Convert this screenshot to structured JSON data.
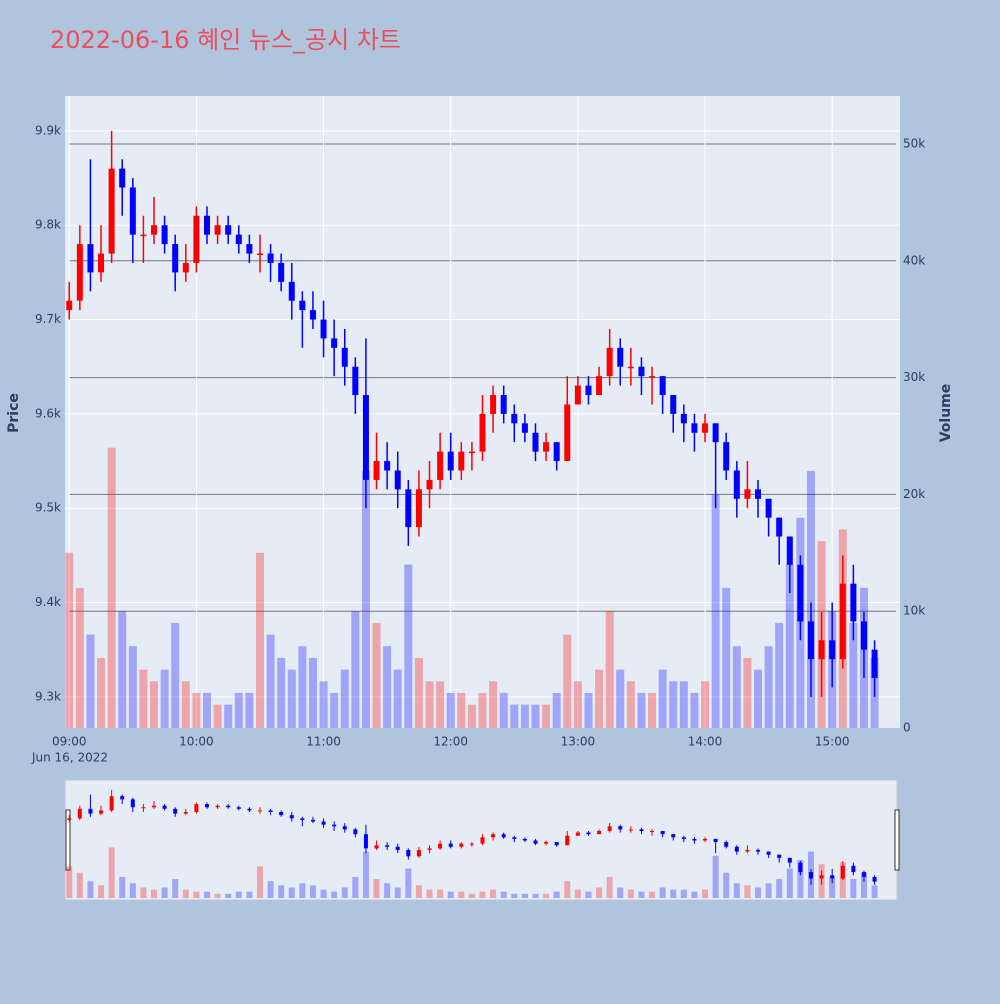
{
  "chart_data": {
    "type": "candlestick",
    "title": "2022-06-16 혜인 뉴스_공시 차트",
    "ylabel": "Price",
    "y2label": "Volume",
    "xdate": "Jun 16, 2022",
    "increasing_color": "#ff0000",
    "decreasing_color": "#0000ff",
    "x": [
      "09:00",
      "09:05",
      "09:10",
      "09:15",
      "09:20",
      "09:25",
      "09:30",
      "09:35",
      "09:40",
      "09:45",
      "09:50",
      "09:55",
      "10:00",
      "10:05",
      "10:10",
      "10:15",
      "10:20",
      "10:25",
      "10:30",
      "10:35",
      "10:40",
      "10:45",
      "10:50",
      "10:55",
      "11:00",
      "11:05",
      "11:10",
      "11:15",
      "11:20",
      "11:25",
      "11:30",
      "11:35",
      "11:40",
      "11:45",
      "11:50",
      "11:55",
      "12:00",
      "12:05",
      "12:10",
      "12:15",
      "12:20",
      "12:25",
      "12:30",
      "12:35",
      "12:40",
      "12:45",
      "12:50",
      "12:55",
      "13:00",
      "13:05",
      "13:10",
      "13:15",
      "13:20",
      "13:25",
      "13:30",
      "13:35",
      "13:40",
      "13:45",
      "13:50",
      "13:55",
      "14:00",
      "14:05",
      "14:10",
      "14:15",
      "14:20",
      "14:25",
      "14:30",
      "14:35",
      "14:40",
      "14:45",
      "14:50",
      "14:55",
      "15:00",
      "15:05",
      "15:10",
      "15:15",
      "15:20"
    ],
    "open": [
      9710,
      9720,
      9780,
      9750,
      9770,
      9860,
      9840,
      9790,
      9790,
      9800,
      9780,
      9750,
      9760,
      9810,
      9790,
      9800,
      9790,
      9780,
      9770,
      9770,
      9760,
      9740,
      9720,
      9710,
      9700,
      9680,
      9670,
      9650,
      9620,
      9530,
      9550,
      9540,
      9520,
      9480,
      9520,
      9530,
      9560,
      9540,
      9560,
      9560,
      9600,
      9620,
      9600,
      9590,
      9580,
      9560,
      9570,
      9550,
      9610,
      9630,
      9620,
      9640,
      9670,
      9650,
      9650,
      9640,
      9640,
      9620,
      9600,
      9590,
      9580,
      9590,
      9570,
      9540,
      9510,
      9520,
      9510,
      9490,
      9470,
      9440,
      9380,
      9340,
      9360,
      9340,
      9420,
      9380,
      9350
    ],
    "high": [
      9740,
      9800,
      9870,
      9800,
      9900,
      9870,
      9850,
      9810,
      9830,
      9810,
      9790,
      9780,
      9820,
      9820,
      9810,
      9810,
      9800,
      9790,
      9790,
      9780,
      9770,
      9760,
      9730,
      9730,
      9720,
      9700,
      9690,
      9660,
      9680,
      9580,
      9570,
      9560,
      9530,
      9540,
      9550,
      9580,
      9580,
      9570,
      9570,
      9620,
      9630,
      9630,
      9610,
      9600,
      9590,
      9580,
      9570,
      9640,
      9640,
      9640,
      9650,
      9690,
      9680,
      9670,
      9660,
      9650,
      9640,
      9620,
      9610,
      9600,
      9600,
      9590,
      9580,
      9550,
      9550,
      9530,
      9510,
      9490,
      9470,
      9450,
      9400,
      9390,
      9400,
      9450,
      9440,
      9390,
      9360
    ],
    "low": [
      9700,
      9710,
      9730,
      9740,
      9760,
      9810,
      9760,
      9760,
      9780,
      9770,
      9730,
      9740,
      9750,
      9780,
      9780,
      9780,
      9770,
      9760,
      9750,
      9740,
      9730,
      9700,
      9670,
      9690,
      9660,
      9640,
      9630,
      9600,
      9500,
      9520,
      9520,
      9500,
      9460,
      9470,
      9500,
      9520,
      9530,
      9530,
      9540,
      9550,
      9580,
      9590,
      9570,
      9570,
      9550,
      9550,
      9540,
      9550,
      9610,
      9610,
      9620,
      9630,
      9630,
      9630,
      9620,
      9610,
      9600,
      9580,
      9570,
      9560,
      9570,
      9500,
      9530,
      9490,
      9500,
      9490,
      9470,
      9440,
      9410,
      9360,
      9300,
      9300,
      9310,
      9330,
      9360,
      9320,
      9300
    ],
    "close": [
      9720,
      9780,
      9750,
      9770,
      9860,
      9840,
      9790,
      9790,
      9800,
      9780,
      9750,
      9760,
      9810,
      9790,
      9800,
      9790,
      9780,
      9770,
      9770,
      9760,
      9740,
      9720,
      9710,
      9700,
      9680,
      9670,
      9650,
      9620,
      9530,
      9550,
      9540,
      9520,
      9480,
      9520,
      9530,
      9560,
      9540,
      9560,
      9560,
      9600,
      9620,
      9600,
      9590,
      9580,
      9560,
      9570,
      9550,
      9610,
      9630,
      9620,
      9640,
      9670,
      9650,
      9650,
      9640,
      9640,
      9620,
      9600,
      9590,
      9580,
      9590,
      9570,
      9540,
      9510,
      9520,
      9510,
      9490,
      9470,
      9440,
      9380,
      9340,
      9360,
      9340,
      9420,
      9380,
      9350,
      9320
    ],
    "volume": [
      15000,
      12000,
      8000,
      6000,
      24000,
      10000,
      7000,
      5000,
      4000,
      5000,
      9000,
      4000,
      3000,
      3000,
      2000,
      2000,
      3000,
      3000,
      15000,
      8000,
      6000,
      5000,
      7000,
      6000,
      4000,
      3000,
      5000,
      10000,
      22000,
      9000,
      7000,
      5000,
      14000,
      6000,
      4000,
      4000,
      3000,
      3000,
      2000,
      3000,
      4000,
      3000,
      2000,
      2000,
      2000,
      2000,
      3000,
      8000,
      4000,
      3000,
      5000,
      10000,
      5000,
      4000,
      3000,
      3000,
      5000,
      4000,
      4000,
      3000,
      4000,
      20000,
      12000,
      7000,
      6000,
      5000,
      7000,
      9000,
      14000,
      18000,
      22000,
      16000,
      10000,
      17000,
      9000,
      12000,
      6000
    ],
    "xlim": [
      "08:58",
      "15:32"
    ],
    "xticks": [
      "09:00",
      "10:00",
      "11:00",
      "12:00",
      "13:00",
      "14:00",
      "15:00"
    ],
    "ylim": [
      9267,
      9937
    ],
    "yticks": [
      {
        "value": 9300,
        "label": "9.3k"
      },
      {
        "value": 9400,
        "label": "9.4k"
      },
      {
        "value": 9500,
        "label": "9.5k"
      },
      {
        "value": 9600,
        "label": "9.6k"
      },
      {
        "value": 9700,
        "label": "9.7k"
      },
      {
        "value": 9800,
        "label": "9.8k"
      },
      {
        "value": 9900,
        "label": "9.9k"
      }
    ],
    "y2lim": [
      0,
      54110
    ],
    "y2ticks": [
      0,
      {
        "value": 10000,
        "label": "10k"
      },
      {
        "value": 20000,
        "label": "20k"
      },
      {
        "value": 30000,
        "label": "30k"
      },
      {
        "value": 40000,
        "label": "40k"
      },
      {
        "value": 50000,
        "label": "50k"
      }
    ],
    "grid": true
  }
}
